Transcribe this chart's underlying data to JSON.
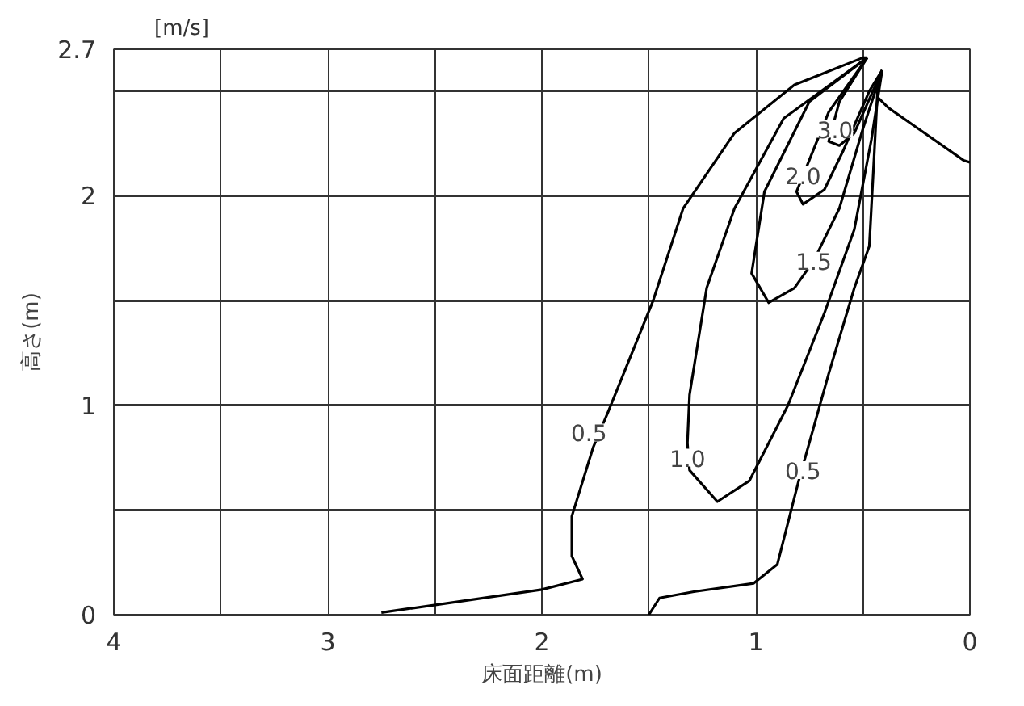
{
  "chart_data": {
    "type": "line",
    "xlabel": "床面距離(m)",
    "ylabel": "高さ(m)",
    "xlim": [
      4,
      0
    ],
    "ylim": [
      0,
      2.7
    ],
    "xticks": [
      4,
      {
        "value": 3.5,
        "label": null
      },
      3,
      {
        "value": 2.5,
        "label": null
      },
      2,
      {
        "value": 1.5,
        "label": null
      },
      1,
      {
        "value": 0.5,
        "label": null
      },
      0
    ],
    "yticks": [
      0,
      {
        "value": 0.5,
        "label": null
      },
      1,
      {
        "value": 1.5,
        "label": null
      },
      2,
      {
        "value": 2.5,
        "label": null
      },
      2.7
    ],
    "grid": true,
    "marker": "none",
    "line_style": "solid",
    "series": [
      {
        "color": "#000000",
        "x": [
          2.75,
          2.0,
          1.81,
          1.86,
          1.86,
          1.76,
          1.69,
          1.48,
          1.34,
          1.1,
          0.82,
          0.5,
          0.48
        ],
        "values": [
          0.01,
          0.12,
          0.17,
          0.28,
          0.47,
          0.8,
          0.97,
          1.5,
          1.94,
          2.3,
          2.53,
          2.66,
          2.66
        ]
      },
      {
        "color": "#000000",
        "x": [
          1.5,
          1.45,
          1.29,
          1.01,
          0.9,
          0.8,
          0.66,
          0.54,
          0.47,
          0.45,
          0.43,
          0.41
        ],
        "values": [
          0.0,
          0.08,
          0.11,
          0.15,
          0.24,
          0.64,
          1.15,
          1.56,
          1.76,
          2.14,
          2.53,
          2.6
        ]
      },
      {
        "color": "#000000",
        "x": [
          0.43,
          0.38,
          0.24,
          0.03,
          0.0
        ],
        "values": [
          2.47,
          2.42,
          2.32,
          2.17,
          2.16
        ]
      },
      {
        "color": "#000000",
        "x": [
          0.48,
          0.87,
          1.1,
          1.23,
          1.31,
          1.32,
          1.31,
          1.18,
          1.03,
          0.85,
          0.68,
          0.54,
          0.46,
          0.41
        ],
        "values": [
          2.66,
          2.37,
          1.94,
          1.56,
          1.05,
          0.82,
          0.69,
          0.54,
          0.64,
          1.0,
          1.44,
          1.84,
          2.27,
          2.6
        ]
      },
      {
        "color": "#000000",
        "x": [
          0.48,
          0.75,
          0.96,
          1.02,
          0.94,
          0.82,
          0.73,
          0.61,
          0.5,
          0.41
        ],
        "values": [
          2.66,
          2.45,
          2.02,
          1.63,
          1.49,
          1.56,
          1.69,
          1.94,
          2.32,
          2.6
        ]
      },
      {
        "color": "#000000",
        "x": [
          0.48,
          0.66,
          0.81,
          0.78,
          0.68,
          0.59,
          0.47,
          0.41
        ],
        "values": [
          2.66,
          2.4,
          2.02,
          1.96,
          2.03,
          2.22,
          2.5,
          2.6
        ]
      },
      {
        "color": "#000000",
        "x": [
          0.48,
          0.61,
          0.66,
          0.61,
          0.54,
          0.41
        ],
        "values": [
          2.66,
          2.45,
          2.26,
          2.24,
          2.3,
          2.6
        ]
      }
    ],
    "annotations": [
      "[m/s]",
      {
        "text": "0.5",
        "x": 1.78,
        "y": 0.87
      },
      {
        "text": "1.0",
        "x": 1.32,
        "y": 0.75
      },
      {
        "text": "0.5",
        "x": 0.78,
        "y": 0.69
      },
      {
        "text": "1.5",
        "x": 0.73,
        "y": 1.69
      },
      {
        "text": "2.0",
        "x": 0.78,
        "y": 2.1
      },
      {
        "text": "3.0",
        "x": 0.63,
        "y": 2.32
      }
    ]
  }
}
